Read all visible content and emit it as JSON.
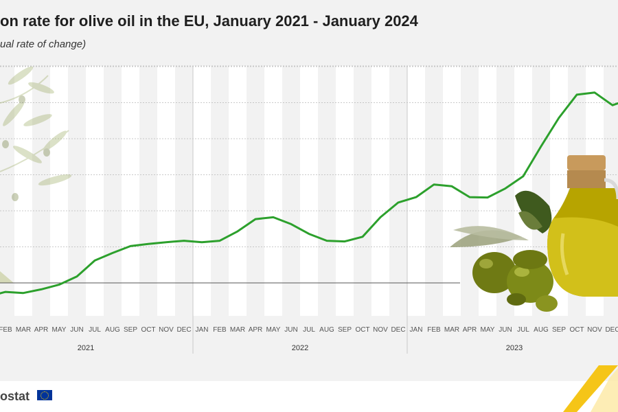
{
  "header": {
    "title": "on rate for olive oil in the EU, January 2021 - January 2024",
    "subtitle": "ual rate of change)"
  },
  "chart_data": {
    "type": "line",
    "title": "on rate for olive oil in the EU, January 2021 - January 2024",
    "subtitle": "ual rate of change)",
    "x_months": [
      "JAN",
      "FEB",
      "MAR",
      "APR",
      "MAY",
      "JUN",
      "JUL",
      "AUG",
      "SEP",
      "OCT",
      "NOV",
      "DEC",
      "JAN",
      "FEB",
      "MAR",
      "APR",
      "MAY",
      "JUN",
      "JUL",
      "AUG",
      "SEP",
      "OCT",
      "NOV",
      "DEC",
      "JAN",
      "FEB",
      "MAR",
      "APR",
      "MAY",
      "JUN",
      "JUL",
      "AUG",
      "SEP",
      "OCT",
      "NOV",
      "DEC",
      "JAN"
    ],
    "visible_tick_labels_from_index": 1,
    "years": [
      {
        "label": "2021",
        "start": 0,
        "end": 11
      },
      {
        "label": "2022",
        "start": 12,
        "end": 23
      },
      {
        "label": "2023",
        "start": 24,
        "end": 35
      }
    ],
    "series": [
      {
        "color": "#2ca02c",
        "values": [
          -3.8,
          -2.5,
          -2.8,
          -1.8,
          -0.5,
          1.8,
          6.2,
          8.3,
          10.2,
          10.8,
          11.3,
          11.7,
          11.3,
          11.7,
          14.3,
          17.7,
          18.2,
          16.3,
          13.6,
          11.7,
          11.5,
          12.8,
          18.2,
          22.3,
          23.8,
          27.3,
          26.8,
          23.8,
          23.7,
          26.2,
          29.6,
          37.9,
          45.8,
          52.2,
          52.8,
          49.3,
          51.0
        ]
      }
    ],
    "ylim": [
      -5,
      60
    ],
    "y_gridlines": [
      0,
      10,
      20,
      30,
      40,
      50,
      60
    ],
    "zero_line": true,
    "grid": true,
    "alternating_column_bands": true
  },
  "footer": {
    "brand": "ostat",
    "brand_color": "#444444",
    "flag_color": "#003399",
    "accent_color": "#f5c518"
  },
  "decorations": {
    "olive_branch_icon": "olive-branch-icon",
    "olive_oil_bottle_icon": "olive-oil-bottle-icon"
  }
}
